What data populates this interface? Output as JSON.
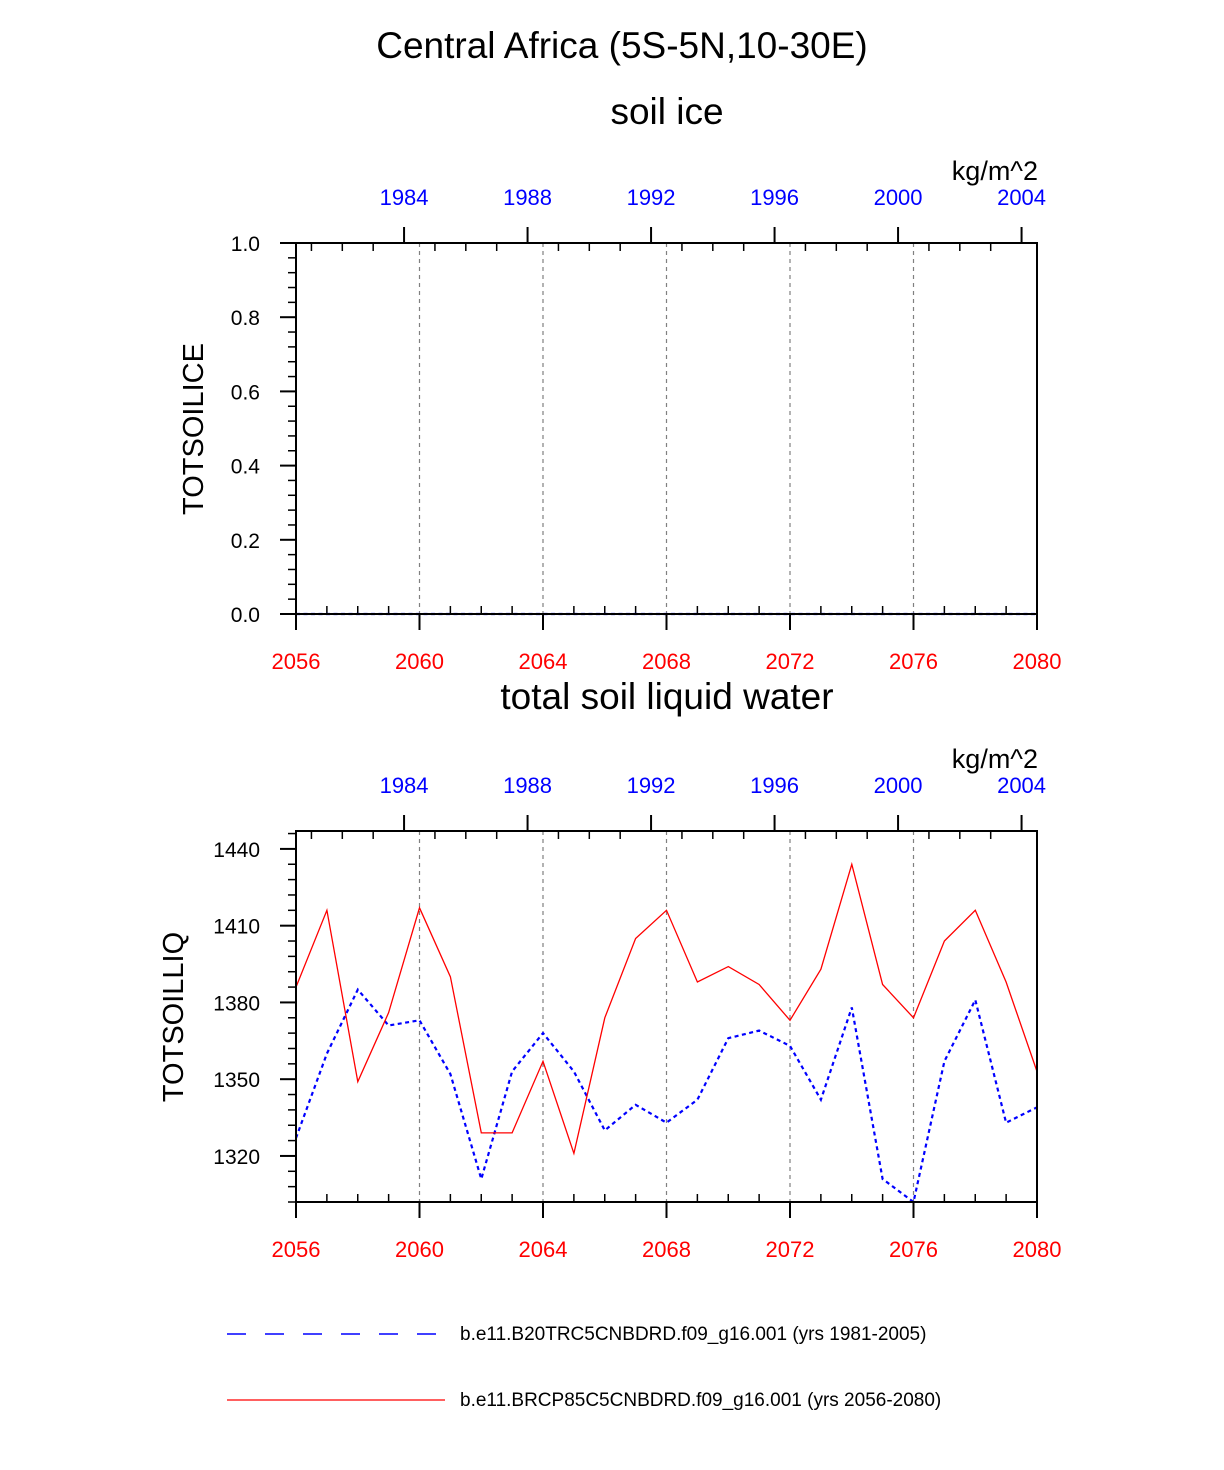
{
  "figure": {
    "title": "Central Africa (5S-5N,10-30E)"
  },
  "colors": {
    "future": "#ff0000",
    "hist": "#0000ff",
    "axis": "#000000",
    "grid": "#808080"
  },
  "chart_data": [
    {
      "type": "line",
      "title": "soil ice",
      "units": "kg/m^2",
      "ylabel": "TOTSOILICE",
      "ylim": [
        0,
        1
      ],
      "yticks": [
        "0.0",
        "0.2",
        "0.4",
        "0.6",
        "0.8",
        "1.0"
      ],
      "xlim": [
        2056,
        2080
      ],
      "xticks_bottom": [
        "2056",
        "2060",
        "2064",
        "2068",
        "2072",
        "2076",
        "2080"
      ],
      "xticks_top": [
        "1984",
        "1988",
        "1992",
        "1996",
        "2000",
        "2004"
      ],
      "x_future": [
        2056,
        2057,
        2058,
        2059,
        2060,
        2061,
        2062,
        2063,
        2064,
        2065,
        2066,
        2067,
        2068,
        2069,
        2070,
        2071,
        2072,
        2073,
        2074,
        2075,
        2076,
        2077,
        2078,
        2079,
        2080
      ],
      "series": [
        {
          "name": "b.e11.B20TRC5CNBDRD.f09_g16.001 (yrs 1981-2005)",
          "style": "dashed",
          "values": [
            0,
            0,
            0,
            0,
            0,
            0,
            0,
            0,
            0,
            0,
            0,
            0,
            0,
            0,
            0,
            0,
            0,
            0,
            0,
            0,
            0,
            0,
            0,
            0,
            0
          ]
        },
        {
          "name": "b.e11.BRCP85C5CNBDRD.f09_g16.001 (yrs 2056-2080)",
          "style": "solid",
          "values": [
            0,
            0,
            0,
            0,
            0,
            0,
            0,
            0,
            0,
            0,
            0,
            0,
            0,
            0,
            0,
            0,
            0,
            0,
            0,
            0,
            0,
            0,
            0,
            0,
            0
          ]
        }
      ]
    },
    {
      "type": "line",
      "title": "total soil liquid water",
      "units": "kg/m^2",
      "ylabel": "TOTSOILLIQ",
      "ylim": [
        1302,
        1447
      ],
      "yticks": [
        "1320",
        "1350",
        "1380",
        "1410",
        "1440"
      ],
      "xlim": [
        2056,
        2080
      ],
      "xticks_bottom": [
        "2056",
        "2060",
        "2064",
        "2068",
        "2072",
        "2076",
        "2080"
      ],
      "xticks_top": [
        "1984",
        "1988",
        "1992",
        "1996",
        "2000",
        "2004"
      ],
      "x_future": [
        2056,
        2057,
        2058,
        2059,
        2060,
        2061,
        2062,
        2063,
        2064,
        2065,
        2066,
        2067,
        2068,
        2069,
        2070,
        2071,
        2072,
        2073,
        2074,
        2075,
        2076,
        2077,
        2078,
        2079,
        2080
      ],
      "series": [
        {
          "name": "b.e11.B20TRC5CNBDRD.f09_g16.001 (yrs 1981-2005)",
          "style": "dashed",
          "values": [
            1327,
            1360,
            1385,
            1371,
            1373,
            1352,
            1311,
            1353,
            1368,
            1353,
            1330,
            1340,
            1333,
            1342,
            1366,
            1369,
            1363,
            1342,
            1378,
            1311,
            1302,
            1357,
            1381,
            1333,
            1339
          ]
        },
        {
          "name": "b.e11.BRCP85C5CNBDRD.f09_g16.001 (yrs 2056-2080)",
          "style": "solid",
          "values": [
            1386,
            1416,
            1349,
            1376,
            1417,
            1390,
            1329,
            1329,
            1357,
            1321,
            1374,
            1405,
            1416,
            1388,
            1394,
            1387,
            1373,
            1393,
            1434,
            1387,
            1374,
            1404,
            1416,
            1388,
            1353
          ]
        }
      ]
    }
  ],
  "legend": {
    "items": [
      {
        "label": "b.e11.B20TRC5CNBDRD.f09_g16.001 (yrs 1981-2005)",
        "style": "dashed"
      },
      {
        "label": "b.e11.BRCP85C5CNBDRD.f09_g16.001 (yrs 2056-2080)",
        "style": "solid"
      }
    ]
  }
}
